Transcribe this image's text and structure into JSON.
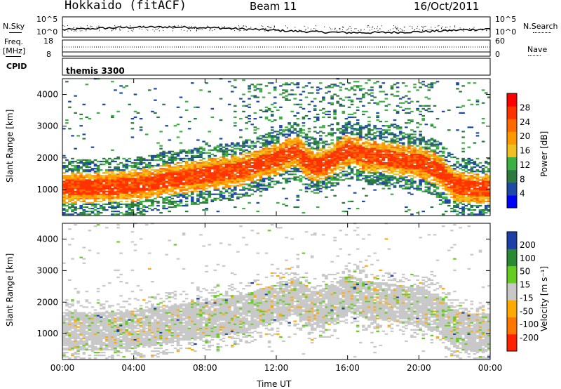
{
  "header": {
    "station": "Hokkaido (fitACF)",
    "beam": "Beam 11",
    "date": "16/Oct/2011"
  },
  "top_panels": {
    "nsky_label": "N.Sky",
    "nsky_ticks": [
      "10^5",
      "10^0"
    ],
    "nsearch_label": "N.Search",
    "nsearch_ticks": [
      "10^5",
      "10^0"
    ],
    "freq_label": "Freq.",
    "freq_unit": "[MHz]",
    "freq_ticks": [
      "18",
      "8"
    ],
    "nave_label": "Nave",
    "nave_ticks": [
      "60",
      "0"
    ],
    "cpid_label": "CPID",
    "cpid_value": "themis 3300"
  },
  "colors": {
    "power_scale": [
      "#0000ff",
      "#1e4aa6",
      "#2d7a3f",
      "#3cb043",
      "#f0c020",
      "#ff9900",
      "#ff6a00",
      "#ff3300",
      "#ff0000"
    ],
    "velocity_scale": [
      "#1f3fa8",
      "#2a8a33",
      "#66cc22",
      "#c8c8c8",
      "#ffaa00",
      "#ff7700",
      "#ff2200"
    ]
  },
  "chart_data": [
    {
      "type": "heatmap",
      "title": "",
      "xlabel": "",
      "ylabel": "Slant Range [km]",
      "xlim": [
        "00:00",
        "24:00"
      ],
      "ylim": [
        180,
        4500
      ],
      "y_ticks": [
        "1000",
        "2000",
        "3000",
        "4000"
      ],
      "colorbar_label": "Power [dB]",
      "colorbar_ticks": [
        "4",
        "8",
        "12",
        "16",
        "20",
        "24",
        "28"
      ],
      "colorbar_range": [
        0,
        32
      ],
      "echo_band": {
        "times_h": [
          0,
          2,
          4,
          6,
          8,
          10,
          11,
          12,
          13,
          14,
          15,
          16,
          17,
          18,
          19,
          20,
          21,
          22,
          23,
          24
        ],
        "center_km": [
          1050,
          1050,
          1100,
          1300,
          1450,
          1600,
          1800,
          1950,
          2200,
          1700,
          1900,
          2250,
          2050,
          2000,
          1900,
          1850,
          1600,
          1100,
          1000,
          1000
        ],
        "core_power_db": [
          30,
          29,
          28,
          28,
          28,
          27,
          27,
          26,
          27,
          27,
          28,
          28,
          27,
          27,
          27,
          27,
          28,
          29,
          30,
          30
        ]
      }
    },
    {
      "type": "heatmap",
      "title": "",
      "xlabel": "Time UT",
      "ylabel": "Slant Range [km]",
      "x_ticks": [
        "00:00",
        "04:00",
        "08:00",
        "12:00",
        "16:00",
        "20:00",
        "00:00"
      ],
      "y_ticks": [
        "1000",
        "2000",
        "3000",
        "4000"
      ],
      "colorbar_label": "Velocity [m s⁻¹]",
      "colorbar_ticks": [
        "200",
        "100",
        "50",
        "15",
        "-15",
        "-50",
        "-100",
        "-200"
      ],
      "colorbar_range": [
        -250,
        250
      ],
      "dominant_velocity": "-15 to 15"
    }
  ]
}
